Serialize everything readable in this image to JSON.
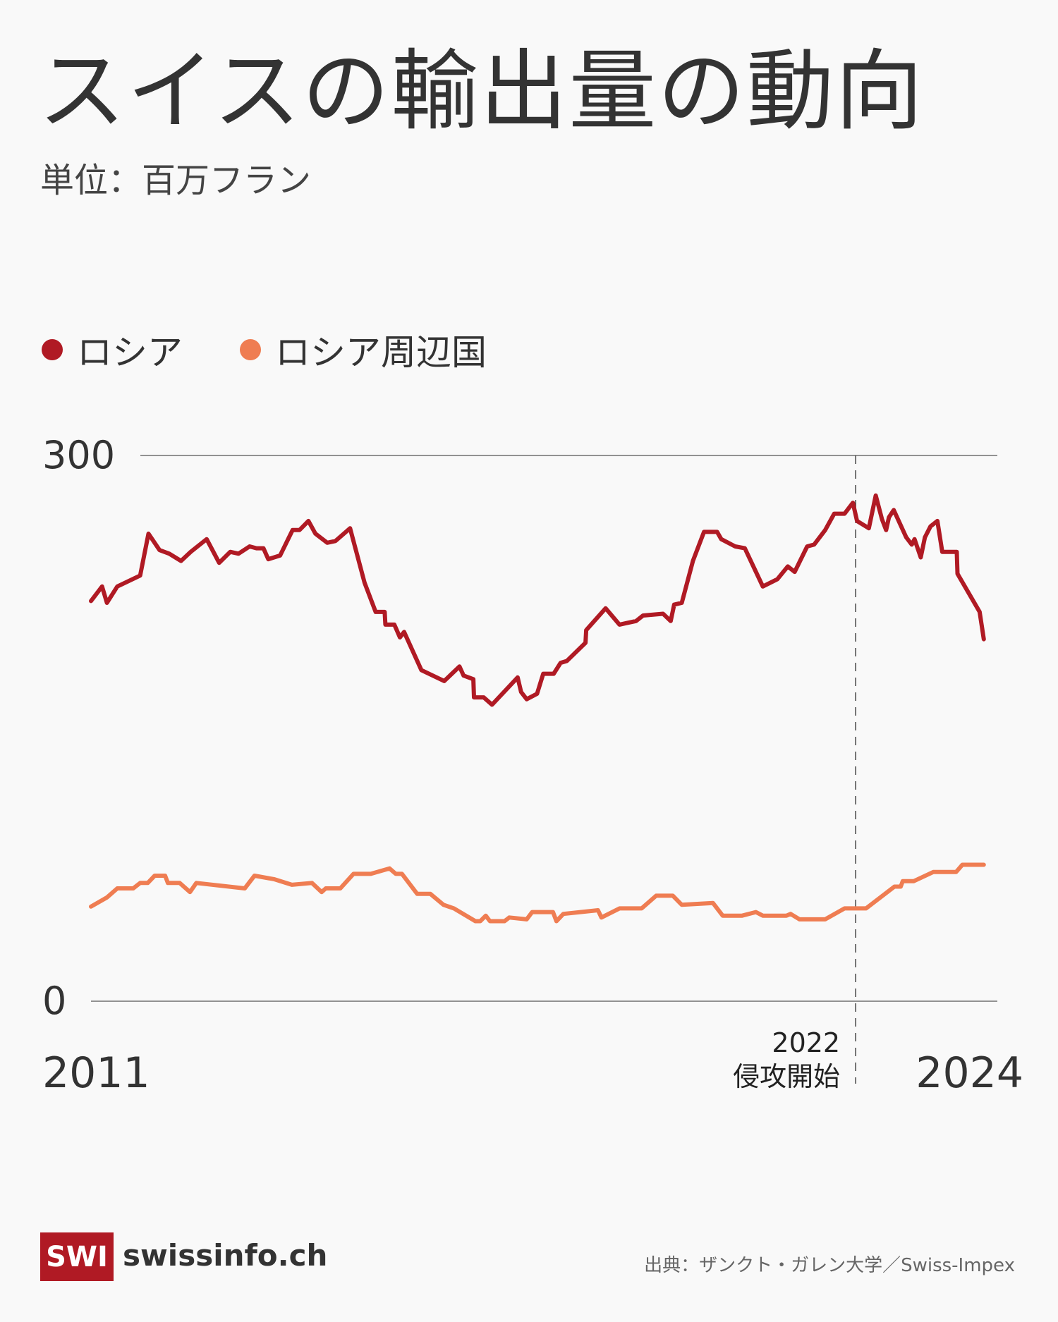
{
  "title": "スイスの輸出量の動向",
  "subtitle": "単位：百万フラン",
  "colors": {
    "russia": "#b01a24",
    "neighbors": "#ef7d52",
    "background": "#f9f9f9"
  },
  "footer": {
    "logo_mark": "SWI",
    "logo_text": "swissinfo.ch",
    "source": "出典：ザンクト・ガレン大学／Swiss-Impex"
  },
  "chart_data": {
    "type": "line",
    "title": "スイスの輸出量の動向",
    "ylabel": "単位：百万フラン",
    "ylim": [
      0,
      300
    ],
    "xlim": [
      2011,
      2024
    ],
    "y_ticks": [
      {
        "value": 300,
        "label": "300"
      },
      {
        "value": 0,
        "label": "0"
      }
    ],
    "x_labels": [
      {
        "value": 2011,
        "label": "2011"
      },
      {
        "value": 2024,
        "label": "2024"
      }
    ],
    "legend_position": "top-left",
    "annotation": {
      "x": 2022.04,
      "year_label": "2022",
      "text": "侵攻開始"
    },
    "series": [
      {
        "name": "ロシア",
        "color": "#b01a24",
        "points": [
          [
            2011.0,
            220
          ],
          [
            2011.16,
            228
          ],
          [
            2011.23,
            219
          ],
          [
            2011.38,
            228
          ],
          [
            2011.71,
            234
          ],
          [
            2011.83,
            257
          ],
          [
            2011.99,
            248
          ],
          [
            2012.13,
            246
          ],
          [
            2012.3,
            242
          ],
          [
            2012.44,
            247
          ],
          [
            2012.67,
            254
          ],
          [
            2012.85,
            241
          ],
          [
            2013.01,
            247
          ],
          [
            2013.13,
            246
          ],
          [
            2013.29,
            250
          ],
          [
            2013.39,
            249
          ],
          [
            2013.49,
            249
          ],
          [
            2013.56,
            243
          ],
          [
            2013.73,
            245
          ],
          [
            2013.91,
            259
          ],
          [
            2014.01,
            259
          ],
          [
            2014.14,
            264
          ],
          [
            2014.24,
            257
          ],
          [
            2014.41,
            252
          ],
          [
            2014.53,
            253
          ],
          [
            2014.74,
            260
          ],
          [
            2014.95,
            230
          ],
          [
            2015.11,
            214
          ],
          [
            2015.24,
            214
          ],
          [
            2015.25,
            207
          ],
          [
            2015.38,
            207
          ],
          [
            2015.46,
            200
          ],
          [
            2015.52,
            203
          ],
          [
            2015.77,
            182
          ],
          [
            2016.1,
            176
          ],
          [
            2016.32,
            184
          ],
          [
            2016.38,
            179
          ],
          [
            2016.52,
            177
          ],
          [
            2016.53,
            167
          ],
          [
            2016.67,
            167
          ],
          [
            2016.79,
            163
          ],
          [
            2017.16,
            178
          ],
          [
            2017.21,
            170
          ],
          [
            2017.29,
            166
          ],
          [
            2017.44,
            169
          ],
          [
            2017.53,
            180
          ],
          [
            2017.68,
            180
          ],
          [
            2017.78,
            186
          ],
          [
            2017.87,
            187
          ],
          [
            2018.14,
            197
          ],
          [
            2018.15,
            204
          ],
          [
            2018.43,
            216
          ],
          [
            2018.63,
            207
          ],
          [
            2018.87,
            209
          ],
          [
            2018.97,
            212
          ],
          [
            2019.26,
            213
          ],
          [
            2019.37,
            209
          ],
          [
            2019.42,
            218
          ],
          [
            2019.53,
            219
          ],
          [
            2019.69,
            242
          ],
          [
            2019.85,
            258
          ],
          [
            2020.04,
            258
          ],
          [
            2020.1,
            254
          ],
          [
            2020.3,
            250
          ],
          [
            2020.44,
            249
          ],
          [
            2020.7,
            228
          ],
          [
            2020.91,
            232
          ],
          [
            2021.06,
            239
          ],
          [
            2021.16,
            236
          ],
          [
            2021.34,
            250
          ],
          [
            2021.44,
            251
          ],
          [
            2021.6,
            259
          ],
          [
            2021.73,
            268
          ],
          [
            2021.88,
            268
          ],
          [
            2022.0,
            274
          ],
          [
            2022.06,
            264
          ],
          [
            2022.23,
            260
          ],
          [
            2022.33,
            278
          ],
          [
            2022.42,
            265
          ],
          [
            2022.48,
            259
          ],
          [
            2022.52,
            266
          ],
          [
            2022.59,
            270
          ],
          [
            2022.77,
            255
          ],
          [
            2022.85,
            251
          ],
          [
            2022.89,
            254
          ],
          [
            2022.98,
            244
          ],
          [
            2023.04,
            255
          ],
          [
            2023.12,
            261
          ],
          [
            2023.22,
            264
          ],
          [
            2023.29,
            247
          ],
          [
            2023.5,
            247
          ],
          [
            2023.51,
            235
          ],
          [
            2023.83,
            214
          ],
          [
            2023.89,
            199
          ]
        ]
      },
      {
        "name": "ロシア周辺国",
        "color": "#ef7d52",
        "points": [
          [
            2011.0,
            52
          ],
          [
            2011.23,
            57
          ],
          [
            2011.38,
            62
          ],
          [
            2011.61,
            62
          ],
          [
            2011.71,
            65
          ],
          [
            2011.82,
            65
          ],
          [
            2011.92,
            69
          ],
          [
            2012.07,
            69
          ],
          [
            2012.11,
            65
          ],
          [
            2012.28,
            65
          ],
          [
            2012.43,
            60
          ],
          [
            2012.52,
            65
          ],
          [
            2013.22,
            62
          ],
          [
            2013.36,
            69
          ],
          [
            2013.65,
            67
          ],
          [
            2013.9,
            64
          ],
          [
            2014.19,
            65
          ],
          [
            2014.33,
            60
          ],
          [
            2014.39,
            62
          ],
          [
            2014.6,
            62
          ],
          [
            2014.79,
            70
          ],
          [
            2015.04,
            70
          ],
          [
            2015.31,
            73
          ],
          [
            2015.4,
            70
          ],
          [
            2015.49,
            70
          ],
          [
            2015.71,
            59
          ],
          [
            2015.9,
            59
          ],
          [
            2016.09,
            53
          ],
          [
            2016.24,
            51
          ],
          [
            2016.55,
            44
          ],
          [
            2016.62,
            44
          ],
          [
            2016.7,
            47
          ],
          [
            2016.76,
            44
          ],
          [
            2016.97,
            44
          ],
          [
            2017.04,
            46
          ],
          [
            2017.29,
            45
          ],
          [
            2017.37,
            49
          ],
          [
            2017.67,
            49
          ],
          [
            2017.72,
            44
          ],
          [
            2017.82,
            48
          ],
          [
            2018.32,
            50
          ],
          [
            2018.37,
            46
          ],
          [
            2018.63,
            51
          ],
          [
            2018.95,
            51
          ],
          [
            2019.16,
            58
          ],
          [
            2019.4,
            58
          ],
          [
            2019.53,
            53
          ],
          [
            2019.98,
            54
          ],
          [
            2020.12,
            47
          ],
          [
            2020.4,
            47
          ],
          [
            2020.6,
            49
          ],
          [
            2020.7,
            47
          ],
          [
            2021.04,
            47
          ],
          [
            2021.1,
            48
          ],
          [
            2021.23,
            45
          ],
          [
            2021.6,
            45
          ],
          [
            2021.88,
            51
          ],
          [
            2022.19,
            51
          ],
          [
            2022.6,
            63
          ],
          [
            2022.69,
            63
          ],
          [
            2022.72,
            66
          ],
          [
            2022.88,
            66
          ],
          [
            2023.16,
            71
          ],
          [
            2023.49,
            71
          ],
          [
            2023.58,
            75
          ],
          [
            2023.89,
            75
          ]
        ]
      }
    ]
  }
}
